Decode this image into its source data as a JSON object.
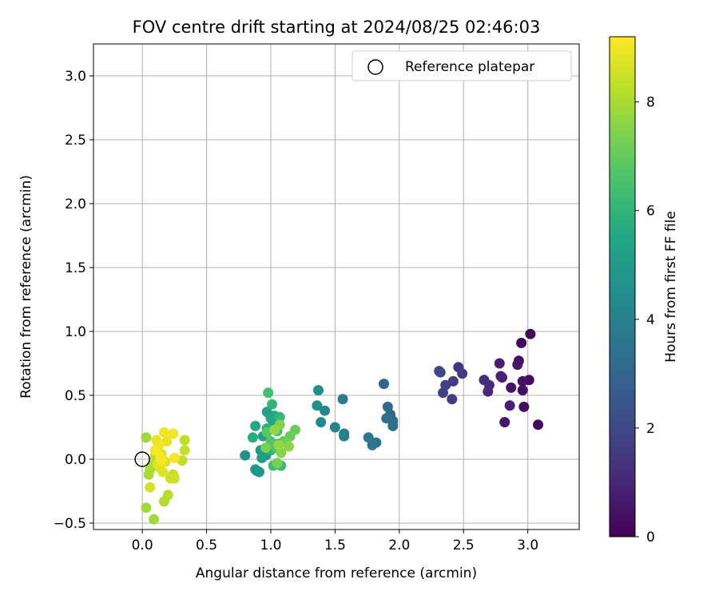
{
  "chart_data": {
    "type": "scatter",
    "title": "FOV centre drift starting at 2024/08/25 02:46:03",
    "xlabel": "Angular distance from reference (arcmin)",
    "ylabel": "Rotation from reference (arcmin)",
    "xlim": [
      -0.38,
      3.4
    ],
    "ylim": [
      -0.55,
      3.25
    ],
    "xticks": [
      "0.0",
      "0.5",
      "1.0",
      "1.5",
      "2.0",
      "2.5",
      "3.0"
    ],
    "xtick_values": [
      0,
      0.5,
      1.0,
      1.5,
      2.0,
      2.5,
      3.0
    ],
    "yticks": [
      "−0.5",
      "0.0",
      "0.5",
      "1.0",
      "1.5",
      "2.0",
      "2.5",
      "3.0"
    ],
    "ytick_values": [
      -0.5,
      0,
      0.5,
      1.0,
      1.5,
      2.0,
      2.5,
      3.0
    ],
    "grid": true,
    "legend": {
      "placement": "top-right",
      "label": "Reference platepar"
    },
    "reference_point": {
      "x": 0,
      "y": 0
    },
    "colorbar": {
      "label": "Hours from first FF file",
      "range": [
        0,
        9.2
      ],
      "ticks": [
        "0",
        "2",
        "4",
        "6",
        "8"
      ],
      "tick_values": [
        0,
        2,
        4,
        6,
        8
      ],
      "colormap": "viridis"
    },
    "points": [
      {
        "x": 3.02,
        "y": 0.98,
        "t": 0.1
      },
      {
        "x": 2.95,
        "y": 0.91,
        "t": 0.2
      },
      {
        "x": 3.08,
        "y": 0.27,
        "t": 0.2
      },
      {
        "x": 2.97,
        "y": 0.41,
        "t": 0.3
      },
      {
        "x": 3.01,
        "y": 0.62,
        "t": 0.3
      },
      {
        "x": 2.96,
        "y": 0.54,
        "t": 0.4
      },
      {
        "x": 2.93,
        "y": 0.77,
        "t": 0.4
      },
      {
        "x": 2.96,
        "y": 0.61,
        "t": 0.5
      },
      {
        "x": 2.87,
        "y": 0.56,
        "t": 0.5
      },
      {
        "x": 2.92,
        "y": 0.74,
        "t": 0.6
      },
      {
        "x": 2.82,
        "y": 0.29,
        "t": 0.6
      },
      {
        "x": 2.8,
        "y": 0.64,
        "t": 0.7
      },
      {
        "x": 2.86,
        "y": 0.42,
        "t": 0.8
      },
      {
        "x": 2.78,
        "y": 0.75,
        "t": 0.8
      },
      {
        "x": 2.79,
        "y": 0.65,
        "t": 0.9
      },
      {
        "x": 2.69,
        "y": 0.53,
        "t": 1.0
      },
      {
        "x": 2.7,
        "y": 0.58,
        "t": 1.1
      },
      {
        "x": 2.66,
        "y": 0.62,
        "t": 1.2
      },
      {
        "x": 2.46,
        "y": 0.72,
        "t": 1.4
      },
      {
        "x": 2.49,
        "y": 0.67,
        "t": 1.5
      },
      {
        "x": 2.42,
        "y": 0.61,
        "t": 1.6
      },
      {
        "x": 2.41,
        "y": 0.47,
        "t": 1.6
      },
      {
        "x": 2.36,
        "y": 0.58,
        "t": 1.7
      },
      {
        "x": 2.34,
        "y": 0.52,
        "t": 1.8
      },
      {
        "x": 2.32,
        "y": 0.68,
        "t": 1.9
      },
      {
        "x": 2.31,
        "y": 0.69,
        "t": 2.0
      },
      {
        "x": 1.88,
        "y": 0.59,
        "t": 3.0
      },
      {
        "x": 1.91,
        "y": 0.41,
        "t": 3.1
      },
      {
        "x": 1.93,
        "y": 0.35,
        "t": 3.2
      },
      {
        "x": 1.95,
        "y": 0.3,
        "t": 3.2
      },
      {
        "x": 1.9,
        "y": 0.32,
        "t": 3.3
      },
      {
        "x": 1.95,
        "y": 0.26,
        "t": 3.4
      },
      {
        "x": 1.82,
        "y": 0.13,
        "t": 3.5
      },
      {
        "x": 1.79,
        "y": 0.11,
        "t": 3.6
      },
      {
        "x": 1.76,
        "y": 0.17,
        "t": 3.7
      },
      {
        "x": 1.56,
        "y": 0.47,
        "t": 3.8
      },
      {
        "x": 1.57,
        "y": 0.2,
        "t": 3.9
      },
      {
        "x": 1.57,
        "y": 0.18,
        "t": 4.0
      },
      {
        "x": 1.5,
        "y": 0.25,
        "t": 4.1
      },
      {
        "x": 1.42,
        "y": 0.38,
        "t": 4.2
      },
      {
        "x": 1.39,
        "y": 0.29,
        "t": 4.3
      },
      {
        "x": 1.37,
        "y": 0.54,
        "t": 4.4
      },
      {
        "x": 1.36,
        "y": 0.42,
        "t": 4.5
      },
      {
        "x": 0.8,
        "y": 0.03,
        "t": 4.6
      },
      {
        "x": 0.89,
        "y": -0.09,
        "t": 4.7
      },
      {
        "x": 0.88,
        "y": -0.08,
        "t": 4.8
      },
      {
        "x": 0.91,
        "y": -0.1,
        "t": 4.8
      },
      {
        "x": 0.92,
        "y": 0.07,
        "t": 4.9
      },
      {
        "x": 0.96,
        "y": 0.03,
        "t": 5.0
      },
      {
        "x": 0.93,
        "y": 0.01,
        "t": 5.1
      },
      {
        "x": 0.94,
        "y": 0.18,
        "t": 5.2
      },
      {
        "x": 0.97,
        "y": 0.37,
        "t": 5.3
      },
      {
        "x": 1.0,
        "y": 0.32,
        "t": 5.4
      },
      {
        "x": 1.02,
        "y": 0.29,
        "t": 5.5
      },
      {
        "x": 1.03,
        "y": 0.34,
        "t": 5.5
      },
      {
        "x": 0.88,
        "y": 0.26,
        "t": 5.6
      },
      {
        "x": 0.86,
        "y": 0.17,
        "t": 5.7
      },
      {
        "x": 1.0,
        "y": 0.07,
        "t": 5.8
      },
      {
        "x": 0.97,
        "y": 0.24,
        "t": 5.9
      },
      {
        "x": 1.01,
        "y": 0.43,
        "t": 6.0
      },
      {
        "x": 1.06,
        "y": 0.12,
        "t": 6.0
      },
      {
        "x": 1.07,
        "y": 0.33,
        "t": 6.1
      },
      {
        "x": 1.08,
        "y": -0.05,
        "t": 6.2
      },
      {
        "x": 1.02,
        "y": -0.05,
        "t": 6.3
      },
      {
        "x": 0.98,
        "y": 0.52,
        "t": 6.4
      },
      {
        "x": 1.05,
        "y": 0.22,
        "t": 6.5
      },
      {
        "x": 1.04,
        "y": 0.09,
        "t": 6.6
      },
      {
        "x": 1.0,
        "y": 0.14,
        "t": 6.7
      },
      {
        "x": 0.97,
        "y": 0.21,
        "t": 6.8
      },
      {
        "x": 1.1,
        "y": 0.14,
        "t": 6.9
      },
      {
        "x": 1.15,
        "y": 0.18,
        "t": 7.0
      },
      {
        "x": 1.19,
        "y": 0.23,
        "t": 7.1
      },
      {
        "x": 1.12,
        "y": 0.13,
        "t": 7.2
      },
      {
        "x": 0.96,
        "y": 0.09,
        "t": 7.3
      },
      {
        "x": 1.05,
        "y": -0.03,
        "t": 7.3
      },
      {
        "x": 1.07,
        "y": 0.27,
        "t": 7.4
      },
      {
        "x": 1.08,
        "y": 0.05,
        "t": 7.5
      },
      {
        "x": 1.14,
        "y": 0.1,
        "t": 7.6
      },
      {
        "x": 1.03,
        "y": 0.23,
        "t": 7.7
      },
      {
        "x": 1.06,
        "y": 0.11,
        "t": 7.7
      },
      {
        "x": 0.03,
        "y": 0.17,
        "t": 7.8
      },
      {
        "x": 0.03,
        "y": -0.38,
        "t": 7.9
      },
      {
        "x": 0.09,
        "y": -0.47,
        "t": 7.9
      },
      {
        "x": 0.05,
        "y": -0.12,
        "t": 8.0
      },
      {
        "x": 0.06,
        "y": -0.08,
        "t": 8.0
      },
      {
        "x": 0.08,
        "y": -0.05,
        "t": 8.1
      },
      {
        "x": 0.17,
        "y": -0.33,
        "t": 8.1
      },
      {
        "x": 0.2,
        "y": -0.28,
        "t": 8.2
      },
      {
        "x": 0.1,
        "y": 0.02,
        "t": 8.2
      },
      {
        "x": 0.33,
        "y": 0.15,
        "t": 8.3
      },
      {
        "x": 0.31,
        "y": -0.01,
        "t": 8.3
      },
      {
        "x": 0.33,
        "y": 0.07,
        "t": 8.4
      },
      {
        "x": 0.24,
        "y": -0.12,
        "t": 8.4
      },
      {
        "x": 0.25,
        "y": -0.15,
        "t": 8.5
      },
      {
        "x": 0.22,
        "y": -0.15,
        "t": 8.5
      },
      {
        "x": 0.06,
        "y": -0.22,
        "t": 8.6
      },
      {
        "x": 0.15,
        "y": 0.04,
        "t": 8.6
      },
      {
        "x": 0.18,
        "y": -0.02,
        "t": 8.7
      },
      {
        "x": 0.12,
        "y": -0.04,
        "t": 8.7
      },
      {
        "x": 0.14,
        "y": -0.07,
        "t": 8.8
      },
      {
        "x": 0.16,
        "y": -0.1,
        "t": 8.8
      },
      {
        "x": 0.11,
        "y": 0.15,
        "t": 8.9
      },
      {
        "x": 0.19,
        "y": 0.14,
        "t": 8.9
      },
      {
        "x": 0.17,
        "y": 0.21,
        "t": 9.0
      },
      {
        "x": 0.24,
        "y": 0.2,
        "t": 9.0
      },
      {
        "x": 0.13,
        "y": 0.11,
        "t": 9.0
      },
      {
        "x": 0.1,
        "y": 0.07,
        "t": 9.1
      },
      {
        "x": 0.15,
        "y": -0.01,
        "t": 9.1
      },
      {
        "x": 0.25,
        "y": 0.01,
        "t": 9.1
      },
      {
        "x": 0.14,
        "y": 0.02,
        "t": 9.2
      }
    ]
  }
}
